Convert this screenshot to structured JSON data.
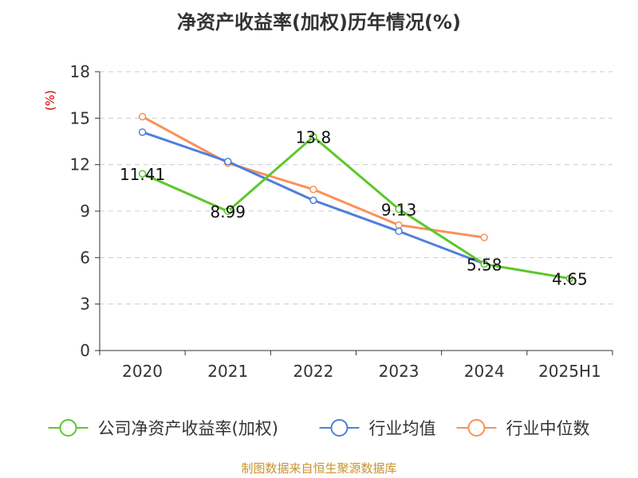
{
  "chart_data": {
    "type": "line",
    "title": "净资产收益率(加权)历年情况(%)",
    "ylabel": "(%)",
    "xlabel": "",
    "categories": [
      "2020",
      "2021",
      "2022",
      "2023",
      "2024",
      "2025H1"
    ],
    "ylim": [
      0,
      18
    ],
    "yticks": [
      0,
      3,
      6,
      9,
      12,
      15,
      18
    ],
    "grid": true,
    "legend_position": "bottom",
    "series": [
      {
        "name": "公司净资产收益率(加权)",
        "color": "#5cc72a",
        "values": [
          11.41,
          8.99,
          13.8,
          9.13,
          5.58,
          4.65
        ],
        "labels": [
          "11.41",
          "8.99",
          "13.8",
          "9.13",
          "5.58",
          "4.65"
        ]
      },
      {
        "name": "行业均值",
        "color": "#4f7fdc",
        "values": [
          14.1,
          12.2,
          9.7,
          7.7,
          5.6,
          null
        ]
      },
      {
        "name": "行业中位数",
        "color": "#f89159",
        "values": [
          15.1,
          12.1,
          10.4,
          8.1,
          7.3,
          null
        ]
      }
    ]
  },
  "footer": {
    "source": "制图数据来自恒生聚源数据库",
    "source_color": "#c8932f"
  },
  "colors": {
    "axis": "#333333",
    "grid": "#cccccc",
    "ylabel": "#cc0000"
  }
}
